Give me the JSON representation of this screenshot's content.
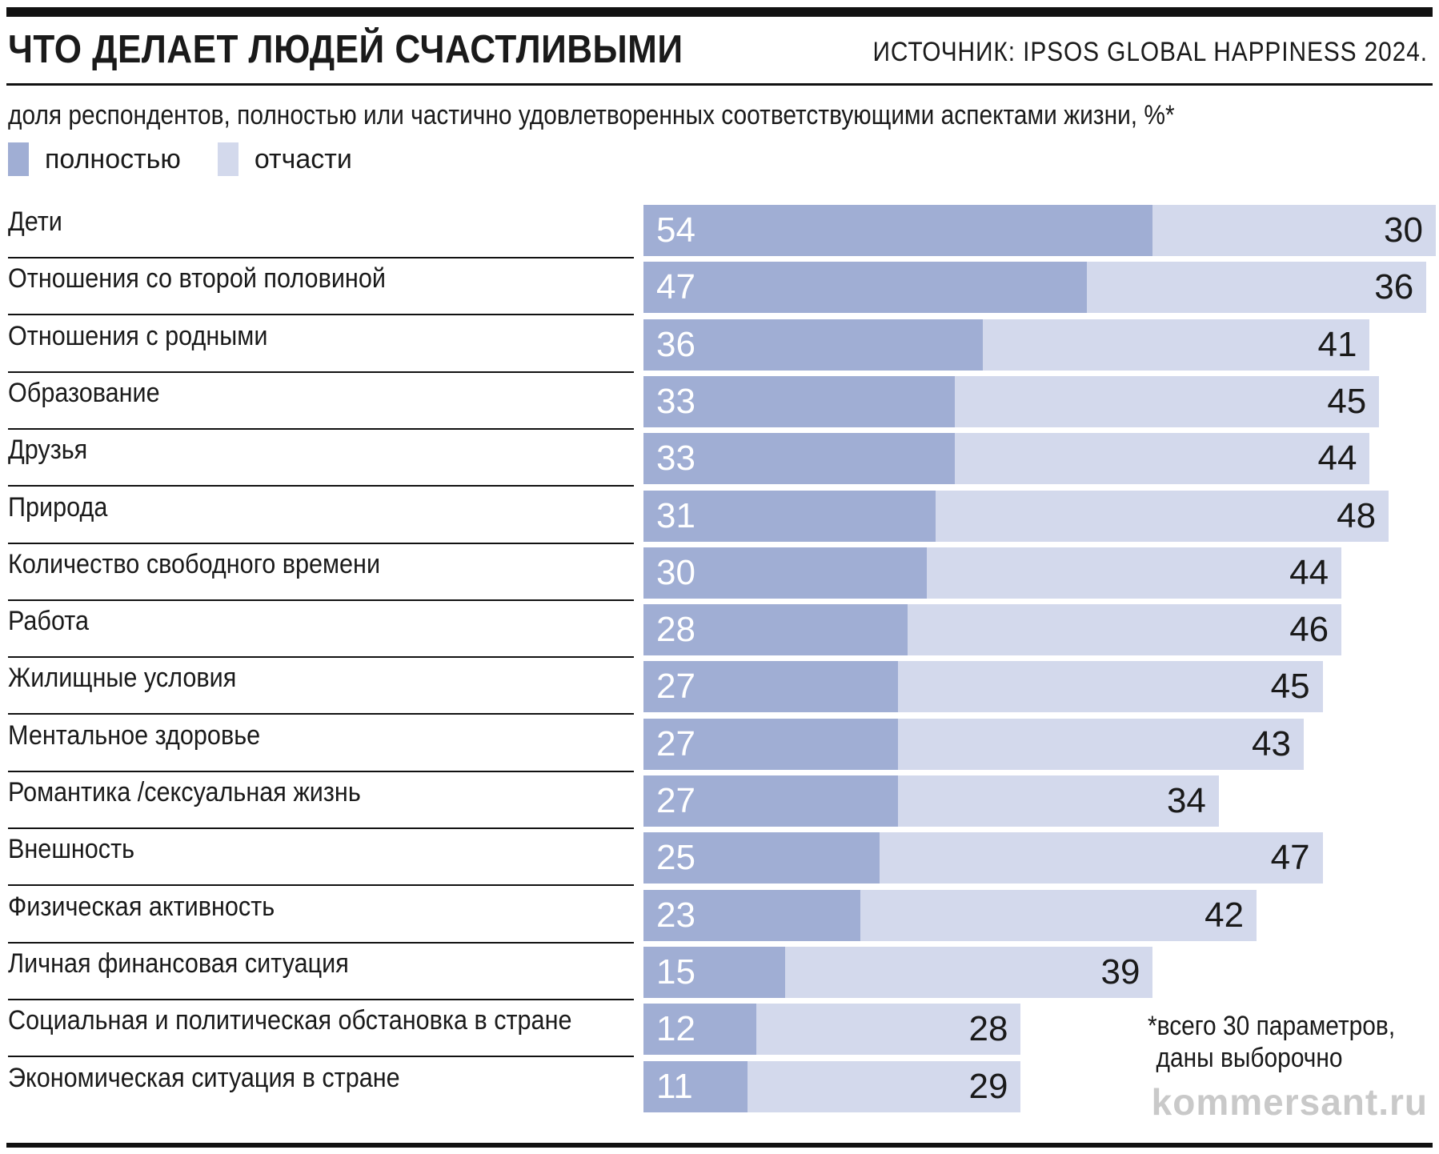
{
  "header": {
    "title": "ЧТО ДЕЛАЕТ ЛЮДЕЙ СЧАСТЛИВЫМИ",
    "source": "ИСТОЧНИК: IPSOS GLOBAL HAPPINESS 2024."
  },
  "subtitle": "доля респондентов, полностью или частично удовлетворенных соответствующими аспектами жизни, %*",
  "legend": [
    {
      "label": "полностью",
      "color": "#a0aed4"
    },
    {
      "label": "отчасти",
      "color": "#d3d9ec"
    }
  ],
  "chart_data": {
    "type": "bar",
    "orientation": "horizontal",
    "stacked": true,
    "categories": [
      "Дети",
      "Отношения со второй половиной",
      "Отношения с родными",
      "Образование",
      "Друзья",
      "Природа",
      "Количество свободного времени",
      "Работа",
      "Жилищные условия",
      "Ментальное здоровье",
      "Романтика /сексуальная жизнь",
      "Внешность",
      "Физическая активность",
      "Личная финансовая ситуация",
      "Социальная и политическая обстановка в стране",
      "Экономическая ситуация в стране"
    ],
    "series": [
      {
        "name": "полностью",
        "color": "#a0aed4",
        "values": [
          54,
          47,
          36,
          33,
          33,
          31,
          30,
          28,
          27,
          27,
          27,
          25,
          23,
          15,
          12,
          11
        ]
      },
      {
        "name": "отчасти",
        "color": "#d3d9ec",
        "values": [
          30,
          36,
          41,
          45,
          44,
          48,
          44,
          46,
          45,
          43,
          34,
          47,
          42,
          39,
          28,
          29
        ]
      }
    ],
    "xlim": [
      0,
      84
    ],
    "legend_position": "top-left",
    "grid": false
  },
  "footnote": {
    "line1": "*всего 30 параметров,",
    "line2": "даны выборочно"
  },
  "watermark": "kommersant.ru"
}
